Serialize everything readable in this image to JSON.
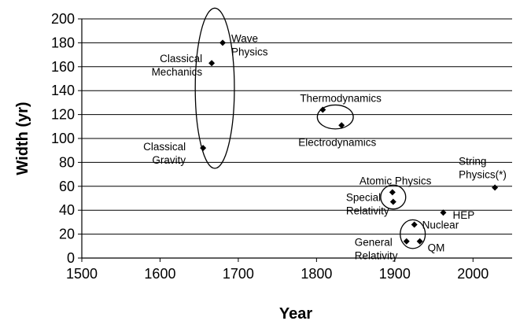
{
  "chart_data": {
    "type": "scatter",
    "xlabel": "Year",
    "ylabel": "Width (yr)",
    "xlim": [
      1500,
      2050
    ],
    "ylim": [
      0,
      200
    ],
    "x_ticks": [
      1500,
      1600,
      1700,
      1800,
      1900,
      2000
    ],
    "y_ticks": [
      0,
      20,
      40,
      60,
      80,
      100,
      120,
      140,
      160,
      180,
      200
    ],
    "grid": "horizontal",
    "legend": "none",
    "marker_color": "#000000",
    "points": [
      {
        "x": 1680,
        "y": 180
      },
      {
        "x": 1666,
        "y": 163
      },
      {
        "x": 1655,
        "y": 92
      },
      {
        "x": 1808,
        "y": 124
      },
      {
        "x": 1832,
        "y": 111
      },
      {
        "x": 1897,
        "y": 55
      },
      {
        "x": 1898,
        "y": 47
      },
      {
        "x": 1925,
        "y": 28
      },
      {
        "x": 1915,
        "y": 14
      },
      {
        "x": 1932,
        "y": 14
      },
      {
        "x": 1962,
        "y": 38
      },
      {
        "x": 2028,
        "y": 59
      }
    ],
    "annotations": [
      {
        "lines": [
          "Wave",
          "Physics"
        ]
      },
      {
        "lines": [
          "Classical",
          "Mechanics"
        ]
      },
      {
        "lines": [
          "Classical",
          "Gravity"
        ]
      },
      {
        "lines": [
          "Thermodynamics"
        ]
      },
      {
        "lines": [
          "Electrodynamics"
        ]
      },
      {
        "lines": [
          "Atomic Physics"
        ]
      },
      {
        "lines": [
          "Special",
          "Relativity"
        ]
      },
      {
        "lines": [
          "Nuclear"
        ]
      },
      {
        "lines": [
          "General",
          "Relativity"
        ]
      },
      {
        "lines": [
          "QM"
        ]
      },
      {
        "lines": [
          "HEP"
        ]
      },
      {
        "lines": [
          "String",
          "Physics(*)"
        ]
      }
    ],
    "groupings": [
      {
        "x": 1670,
        "y": 142,
        "rx": 25,
        "ry": 67
      },
      {
        "x": 1824,
        "y": 118,
        "rx": 23,
        "ry": 10
      },
      {
        "x": 1898,
        "y": 51,
        "rx": 16,
        "ry": 10
      },
      {
        "x": 1923,
        "y": 20,
        "rx": 16,
        "ry": 12
      }
    ]
  }
}
